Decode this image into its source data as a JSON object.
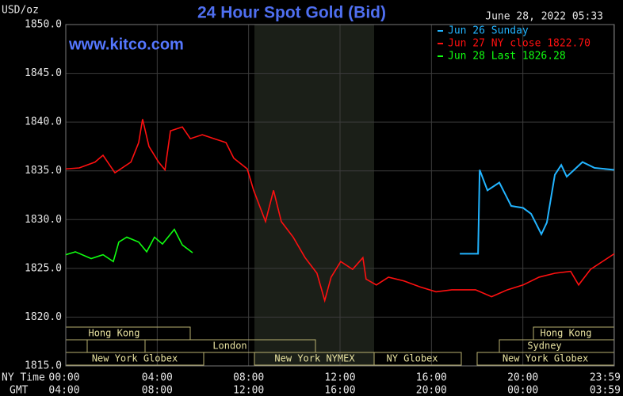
{
  "chart_data": {
    "type": "line",
    "title": "24 Hour Spot Gold (Bid)",
    "timestamp": "June 28, 2022 05:33",
    "watermark": "www.kitco.com",
    "ylabel": "USD/oz",
    "xlabel": "NY Time",
    "x2label": "GMT",
    "xlim": [
      0,
      24
    ],
    "ylim": [
      1815,
      1850
    ],
    "yticks": [
      {
        "value": 1850,
        "label": "1850.0"
      },
      {
        "value": 1845,
        "label": "1845.0"
      },
      {
        "value": 1840,
        "label": "1840.0"
      },
      {
        "value": 1835,
        "label": "1835.0"
      },
      {
        "value": 1830,
        "label": "1830.0"
      },
      {
        "value": 1825,
        "label": "1825.0"
      },
      {
        "value": 1820,
        "label": "1820.0"
      },
      {
        "value": 1815,
        "label": "1815.0"
      }
    ],
    "xticks": [
      {
        "value": 0,
        "label": "00:00"
      },
      {
        "value": 4,
        "label": "04:00"
      },
      {
        "value": 8,
        "label": "08:00"
      },
      {
        "value": 12,
        "label": "12:00"
      },
      {
        "value": 16,
        "label": "16:00"
      },
      {
        "value": 20,
        "label": "20:00"
      },
      {
        "value": 23.98,
        "label": "23:59"
      }
    ],
    "x2ticklabels": [
      "04:00",
      "08:00",
      "12:00",
      "16:00",
      "20:00",
      "00:00",
      "03:59"
    ],
    "grid": true,
    "sessions": [
      "Hong Kong",
      "London",
      "New York Globex",
      "New York NYMEX",
      "NY Globex",
      "Hong Kong",
      "Sydney",
      "New York Globex"
    ],
    "series": [
      {
        "name": "Jun 26 Sunday",
        "color": "#22b4ff",
        "x": [
          17.24,
          18.04,
          18.11,
          18.45,
          18.97,
          19.49,
          20.01,
          20.36,
          20.81,
          21.05,
          21.4,
          21.68,
          21.92,
          22.61,
          23.14,
          24.0
        ],
        "values": [
          1826.5,
          1826.5,
          1835.1,
          1833.0,
          1833.8,
          1831.4,
          1831.2,
          1830.6,
          1828.5,
          1829.7,
          1834.6,
          1835.6,
          1834.4,
          1835.9,
          1835.3,
          1835.1
        ]
      },
      {
        "name": "Jun 27 NY close 1822.70",
        "color": "#ff1010",
        "x": [
          0,
          0.59,
          1.28,
          1.63,
          2.15,
          2.85,
          3.19,
          3.36,
          3.64,
          4.06,
          4.34,
          4.58,
          5.1,
          5.45,
          5.97,
          6.49,
          7.01,
          7.35,
          7.94,
          8.22,
          8.74,
          9.09,
          9.43,
          9.95,
          10.47,
          10.99,
          11.33,
          11.61,
          12.03,
          12.55,
          13.0,
          13.14,
          13.59,
          14.12,
          14.81,
          15.5,
          16.2,
          16.89,
          17.93,
          18.63,
          19.32,
          20.01,
          20.71,
          21.4,
          22.09,
          22.44,
          22.96,
          23.48,
          24.0
        ],
        "values": [
          1835.2,
          1835.3,
          1835.9,
          1836.6,
          1834.8,
          1835.9,
          1837.9,
          1840.3,
          1837.5,
          1835.9,
          1835.1,
          1839.1,
          1839.5,
          1838.3,
          1838.7,
          1838.3,
          1837.9,
          1836.3,
          1835.2,
          1833.0,
          1829.8,
          1833.0,
          1829.8,
          1828.2,
          1826.1,
          1824.5,
          1821.7,
          1824.1,
          1825.7,
          1824.9,
          1826.1,
          1823.9,
          1823.3,
          1824.1,
          1823.7,
          1823.1,
          1822.6,
          1822.8,
          1822.8,
          1822.1,
          1822.8,
          1823.3,
          1824.1,
          1824.5,
          1824.7,
          1823.3,
          1824.9,
          1825.7,
          1826.5
        ]
      },
      {
        "name": "Jun 28 Last 1826.28",
        "color": "#10ff10",
        "x": [
          0,
          0.42,
          1.11,
          1.63,
          2.08,
          2.32,
          2.67,
          3.19,
          3.54,
          3.88,
          4.23,
          4.75,
          5.1,
          5.55
        ],
        "values": [
          1826.4,
          1826.7,
          1826.0,
          1826.4,
          1825.7,
          1827.7,
          1828.2,
          1827.7,
          1826.7,
          1828.2,
          1827.5,
          1829.0,
          1827.4,
          1826.6
        ]
      }
    ]
  }
}
